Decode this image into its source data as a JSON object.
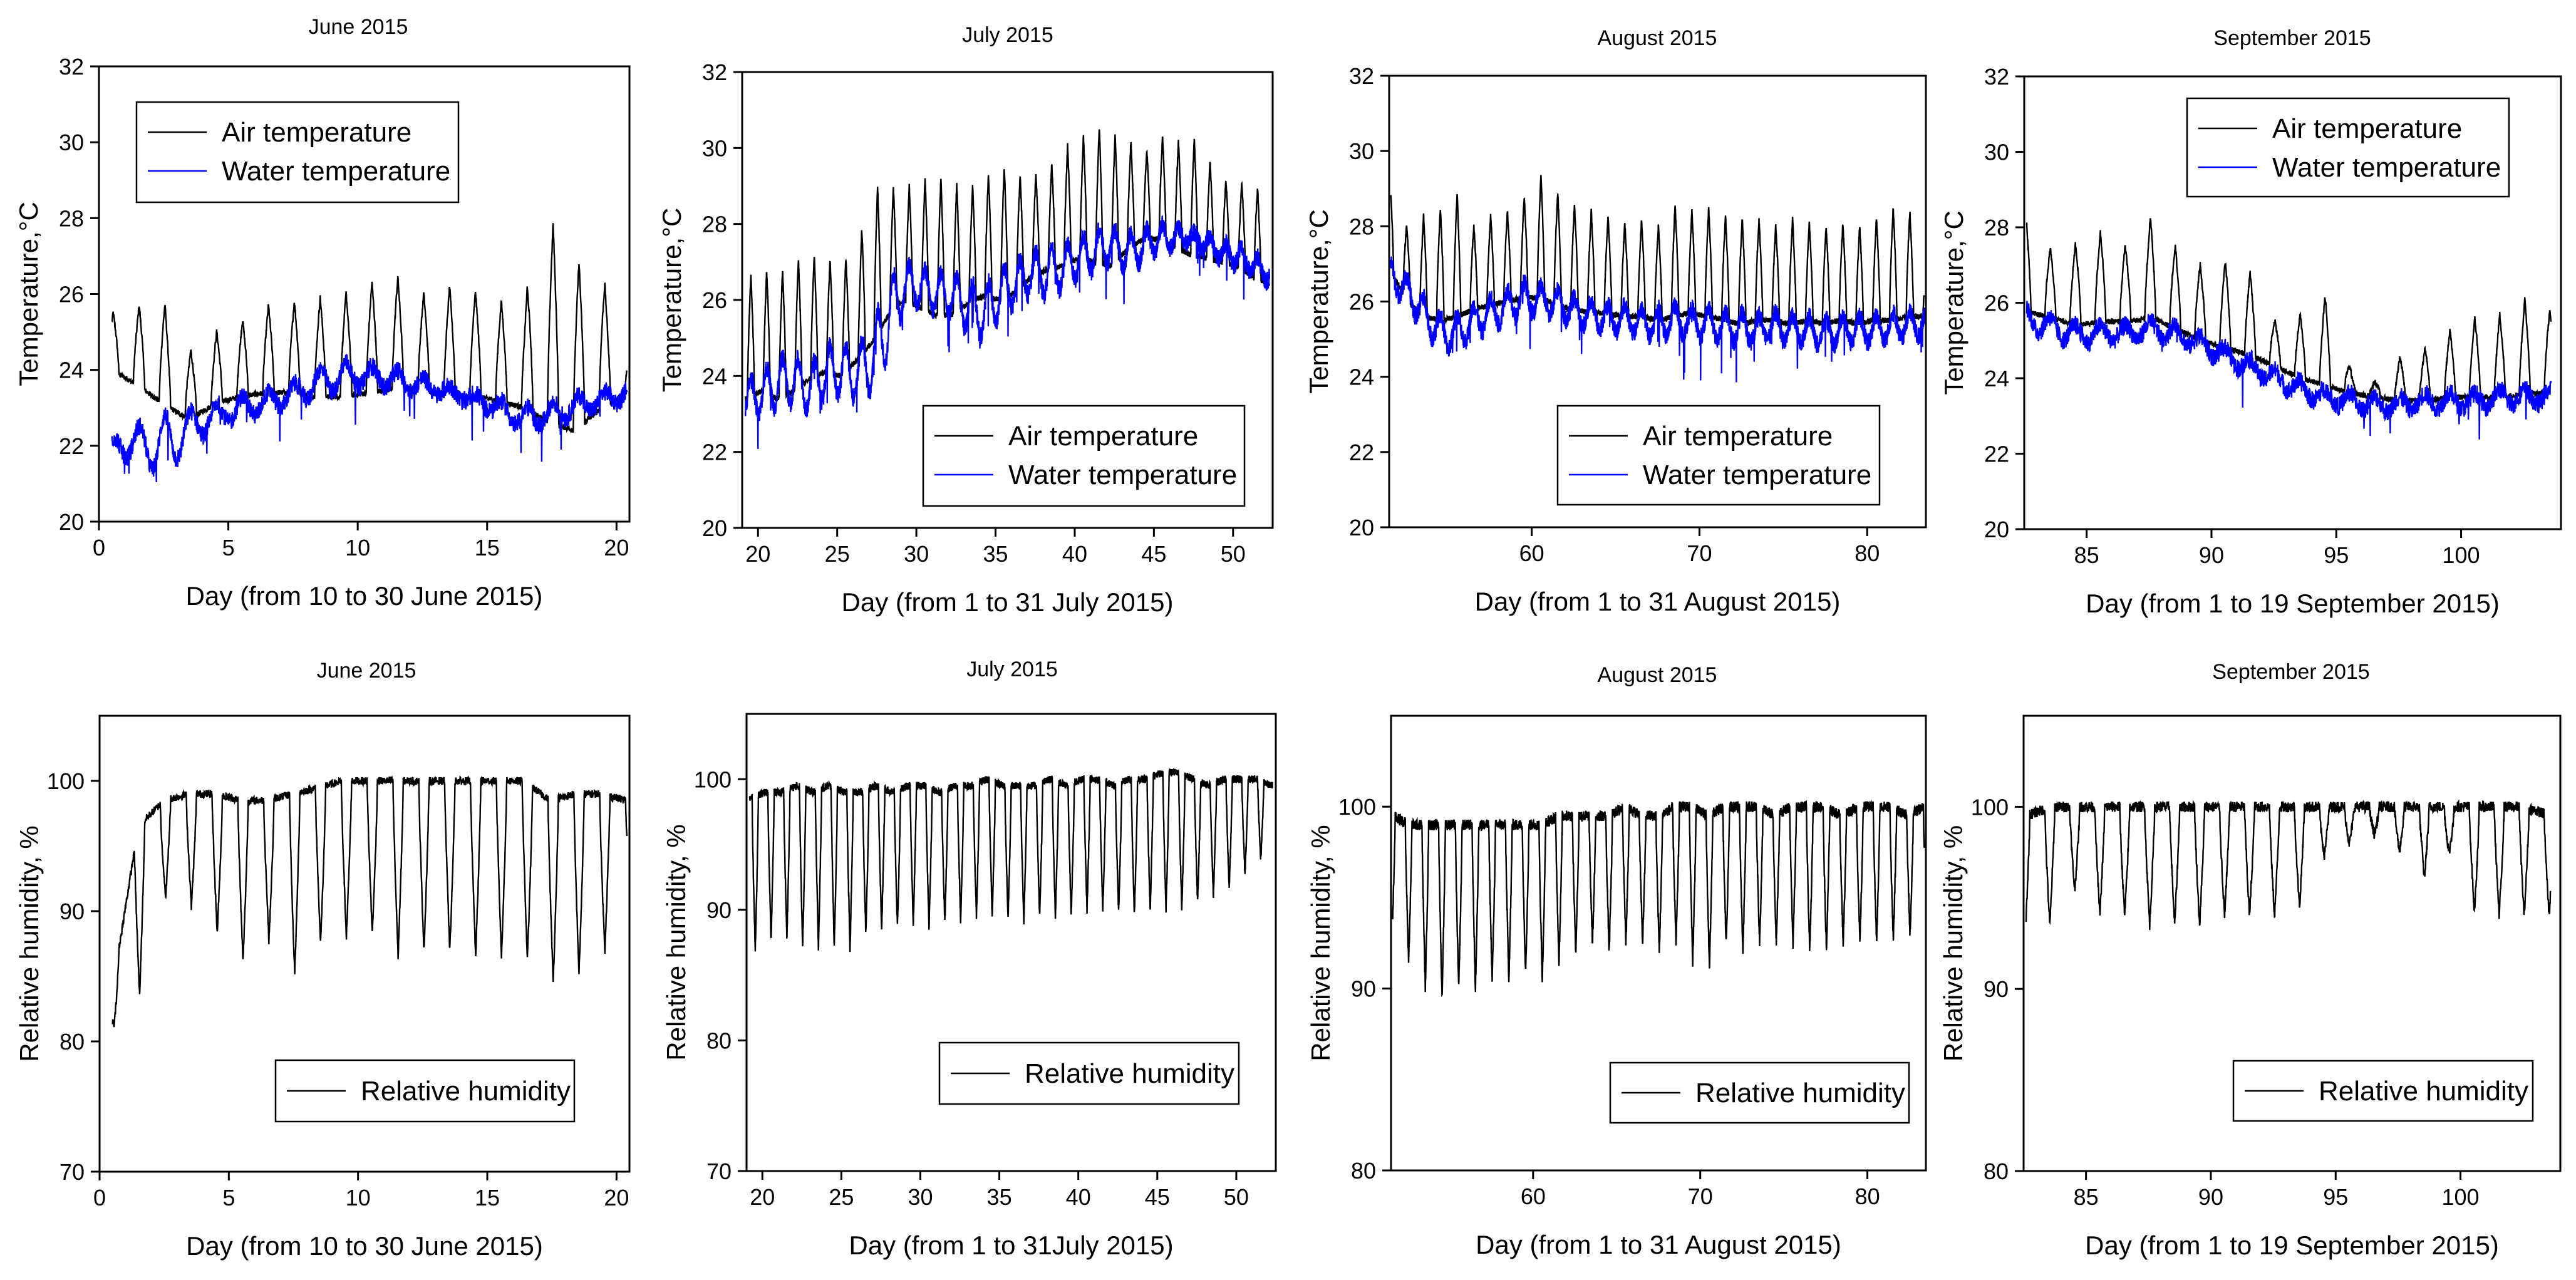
{
  "chart_data": [
    {
      "type": "line",
      "title": "June 2015",
      "xlabel": "Day (from 10 to 30 June 2015)",
      "ylabel": "Temperature,°C",
      "xlim": [
        0,
        20.5
      ],
      "ylim": [
        20,
        32
      ],
      "xticks": [
        0,
        5,
        10,
        15,
        20
      ],
      "yticks": [
        20,
        22,
        24,
        26,
        28,
        30,
        32
      ],
      "legend_position": "top-left",
      "series": [
        {
          "name": "Air temperature",
          "color": "#000000",
          "x_start": 0.5,
          "x_end": 20.4,
          "base": [
            24.0,
            23.6,
            23.1,
            22.7,
            23.1,
            23.3,
            23.4,
            23.4,
            23.3,
            23.3,
            23.4,
            23.5,
            23.5,
            23.3,
            23.3,
            23.2,
            23.0,
            22.6,
            22.4,
            23.0,
            23.4
          ],
          "peak": [
            25.5,
            25.7,
            25.8,
            24.5,
            25.0,
            25.3,
            25.7,
            25.8,
            25.9,
            26.0,
            26.3,
            26.5,
            26.0,
            26.2,
            26.1,
            25.8,
            25.9,
            28.0,
            26.9,
            26.5,
            24.8
          ],
          "amp_note": "daily cycle"
        },
        {
          "name": "Water temperature",
          "color": "#0000ff",
          "x_start": 0.5,
          "x_end": 20.4,
          "base": [
            21.8,
            21.6,
            21.2,
            22.0,
            22.5,
            22.7,
            22.9,
            23.1,
            23.3,
            23.5,
            23.6,
            23.5,
            23.4,
            23.3,
            23.1,
            22.8,
            22.4,
            22.6,
            22.8,
            23.0,
            23.2
          ],
          "peak": [
            22.2,
            22.5,
            22.8,
            22.9,
            23.1,
            23.3,
            23.4,
            23.6,
            24.0,
            24.2,
            24.1,
            24.0,
            23.8,
            23.6,
            23.4,
            23.2,
            23.0,
            23.1,
            23.3,
            23.4,
            23.6
          ],
          "amp_note": "noisy"
        }
      ]
    },
    {
      "type": "line",
      "title": "July 2015",
      "xlabel": "Day (from 1 to 31 July 2015)",
      "ylabel": "Temperature,°C",
      "xlim": [
        19,
        52.5
      ],
      "ylim": [
        20,
        32
      ],
      "xticks": [
        20,
        25,
        30,
        35,
        40,
        45,
        50
      ],
      "yticks": [
        20,
        22,
        24,
        26,
        28,
        30,
        32
      ],
      "legend_position": "bottom-right",
      "series": [
        {
          "name": "Air temperature",
          "color": "#000000",
          "x_start": 19.2,
          "x_end": 52.3,
          "base": [
            23.4,
            23.6,
            23.4,
            23.6,
            23.9,
            24.1,
            24.0,
            24.4,
            24.9,
            25.6,
            26.0,
            25.8,
            25.6,
            25.6,
            25.9,
            26.1,
            26.0,
            26.2,
            26.6,
            26.8,
            26.9,
            27.1,
            27.0,
            26.9,
            27.3,
            27.6,
            27.6,
            27.4,
            27.2,
            27.1,
            27.0,
            26.9,
            26.6,
            26.4
          ],
          "peak": [
            26.6,
            26.8,
            26.7,
            27.0,
            27.2,
            27.1,
            27.0,
            27.3,
            29.0,
            29.0,
            28.9,
            29.2,
            29.3,
            29.1,
            28.9,
            29.2,
            29.6,
            29.3,
            29.3,
            29.4,
            30.0,
            30.2,
            30.6,
            30.4,
            30.3,
            29.8,
            30.4,
            30.1,
            30.4,
            29.8,
            29.2,
            29.0,
            29.3,
            27.8
          ],
          "amp_note": "daily cycle"
        },
        {
          "name": "Water temperature",
          "color": "#0000ff",
          "x_start": 19.2,
          "x_end": 52.3,
          "base": [
            22.9,
            23.0,
            23.2,
            23.3,
            23.1,
            23.4,
            23.5,
            23.4,
            23.6,
            24.5,
            25.8,
            25.9,
            25.7,
            25.6,
            25.2,
            25.0,
            25.5,
            25.9,
            26.2,
            26.1,
            26.3,
            26.6,
            26.8,
            27.0,
            26.8,
            27.0,
            27.3,
            27.4,
            27.5,
            27.3,
            27.0,
            26.9,
            26.7,
            26.4
          ],
          "peak": [
            23.8,
            24.1,
            24.4,
            24.6,
            24.2,
            24.8,
            24.8,
            24.7,
            25.3,
            26.5,
            27.0,
            26.8,
            26.7,
            26.6,
            26.5,
            26.3,
            26.8,
            27.0,
            27.2,
            27.3,
            27.4,
            27.6,
            27.8,
            27.9,
            27.7,
            27.8,
            28.0,
            27.9,
            27.8,
            27.7,
            27.5,
            27.4,
            27.2,
            26.9
          ],
          "amp_note": "noisy"
        }
      ]
    },
    {
      "type": "line",
      "title": "August 2015",
      "xlabel": "Day (from 1 to 31 August 2015)",
      "ylabel": "Temperature,°C",
      "xlim": [
        51.5,
        83.5
      ],
      "ylim": [
        20,
        32
      ],
      "xticks": [
        60,
        70,
        80
      ],
      "yticks": [
        20,
        22,
        24,
        26,
        28,
        30,
        32
      ],
      "legend_position": "bottom-right",
      "series": [
        {
          "name": "Air temperature",
          "color": "#000000",
          "x_start": 51.6,
          "x_end": 83.4,
          "base": [
            26.8,
            26.0,
            25.6,
            25.5,
            25.6,
            25.8,
            25.9,
            26.0,
            26.1,
            26.1,
            25.9,
            25.8,
            25.7,
            25.7,
            25.6,
            25.6,
            25.5,
            25.6,
            25.7,
            25.6,
            25.5,
            25.4,
            25.5,
            25.5,
            25.4,
            25.5,
            25.4,
            25.5,
            25.4,
            25.5,
            25.5,
            25.6,
            25.6
          ],
          "peak": [
            29.3,
            28.0,
            28.3,
            28.5,
            28.9,
            28.0,
            28.3,
            28.4,
            28.8,
            29.4,
            28.9,
            28.6,
            28.4,
            28.3,
            28.1,
            28.2,
            28.0,
            28.6,
            28.4,
            28.5,
            28.3,
            28.2,
            28.2,
            28.0,
            28.2,
            28.1,
            28.0,
            28.1,
            28.0,
            28.2,
            28.5,
            28.6,
            27.0
          ],
          "amp_note": "daily cycle"
        },
        {
          "name": "Water temperature",
          "color": "#0000ff",
          "x_start": 51.6,
          "x_end": 83.4,
          "base": [
            26.4,
            25.9,
            25.3,
            24.7,
            24.8,
            25.1,
            25.3,
            25.5,
            25.7,
            25.7,
            25.6,
            25.4,
            25.3,
            25.2,
            25.2,
            25.1,
            25.0,
            25.1,
            25.1,
            25.0,
            25.0,
            24.9,
            24.9,
            25.0,
            24.9,
            24.9,
            24.8,
            24.9,
            24.9,
            24.9,
            25.0,
            25.0,
            25.1
          ],
          "peak": [
            27.1,
            26.6,
            26.1,
            25.6,
            25.6,
            25.9,
            26.1,
            26.3,
            26.5,
            26.4,
            26.3,
            26.1,
            26.0,
            25.9,
            25.9,
            25.8,
            25.8,
            25.9,
            25.8,
            25.8,
            25.7,
            25.7,
            25.6,
            25.7,
            25.6,
            25.6,
            25.5,
            25.6,
            25.6,
            25.6,
            25.7,
            25.7,
            25.8
          ],
          "amp_note": "noisy"
        }
      ]
    },
    {
      "type": "line",
      "title": "September 2015",
      "xlabel": "Day (from 1 to 19 September 2015)",
      "ylabel": "Temperature,°C",
      "xlim": [
        82.5,
        104
      ],
      "ylim": [
        20,
        32
      ],
      "xticks": [
        85,
        90,
        95,
        100
      ],
      "yticks": [
        20,
        22,
        24,
        26,
        28,
        30,
        32
      ],
      "legend_position": "top-right",
      "series": [
        {
          "name": "Air temperature",
          "color": "#000000",
          "x_start": 82.6,
          "x_end": 103.6,
          "base": [
            25.8,
            25.6,
            25.4,
            25.5,
            25.5,
            25.6,
            25.3,
            25.0,
            24.8,
            24.6,
            24.3,
            24.0,
            23.8,
            23.6,
            23.5,
            23.4,
            23.4,
            23.5,
            23.5,
            23.5,
            23.6,
            23.6
          ],
          "peak": [
            28.5,
            27.4,
            27.6,
            27.9,
            27.5,
            28.3,
            27.5,
            27.0,
            27.1,
            26.8,
            25.5,
            25.7,
            26.2,
            24.2,
            23.9,
            24.6,
            24.8,
            25.3,
            25.6,
            25.7,
            26.1,
            25.8
          ],
          "amp_note": "daily cycle"
        },
        {
          "name": "Water temperature",
          "color": "#0000ff",
          "x_start": 82.6,
          "x_end": 103.6,
          "base": [
            25.3,
            25.1,
            24.9,
            25.0,
            25.0,
            25.1,
            25.0,
            24.7,
            24.4,
            24.1,
            23.8,
            23.5,
            23.3,
            23.2,
            23.1,
            23.1,
            23.2,
            23.2,
            23.2,
            23.3,
            23.3,
            23.3
          ],
          "peak": [
            25.9,
            25.6,
            25.4,
            25.4,
            25.4,
            25.5,
            25.4,
            25.1,
            24.8,
            24.5,
            24.2,
            23.9,
            23.7,
            23.6,
            23.5,
            23.5,
            23.6,
            23.6,
            23.6,
            23.7,
            23.7,
            23.7
          ],
          "amp_note": "noisy"
        }
      ]
    },
    {
      "type": "line",
      "title": "June 2015",
      "xlabel": "Day (from 10 to 30 June 2015)",
      "ylabel": "Relative humidity, %",
      "xlim": [
        0,
        20.5
      ],
      "ylim": [
        70,
        105
      ],
      "xticks": [
        0,
        5,
        10,
        15,
        20
      ],
      "yticks": [
        70,
        80,
        90,
        100
      ],
      "legend_position": "bottom-right",
      "series": [
        {
          "name": "Relative humidity",
          "color": "#000000",
          "x_start": 0.5,
          "x_end": 20.4,
          "base": [
            81.0,
            83.0,
            91.0,
            90.5,
            88.5,
            86.0,
            88.0,
            85.0,
            87.5,
            88.0,
            88.5,
            86.5,
            87.0,
            87.0,
            86.5,
            86.5,
            86.5,
            84.5,
            85.0,
            86.5,
            90.0
          ],
          "peak": [
            84.0,
            96.5,
            98.5,
            99.0,
            99.0,
            98.5,
            98.5,
            99.0,
            99.5,
            100.0,
            100.0,
            100.0,
            100.0,
            100.0,
            100.0,
            100.0,
            100.0,
            98.5,
            99.0,
            99.0,
            98.5
          ],
          "amp_note": "daily cycle"
        }
      ]
    },
    {
      "type": "line",
      "title": "July 2015",
      "xlabel": "Day (from 1 to 31July 2015)",
      "ylabel": "Relative humidity, %",
      "xlim": [
        19,
        52.5
      ],
      "ylim": [
        70,
        105
      ],
      "xticks": [
        20,
        25,
        30,
        35,
        40,
        45,
        50
      ],
      "yticks": [
        70,
        80,
        90,
        100
      ],
      "legend_position": "bottom-right",
      "series": [
        {
          "name": "Relative humidity",
          "color": "#000000",
          "x_start": 19.2,
          "x_end": 52.3,
          "base": [
            86.5,
            87.5,
            88.0,
            87.5,
            87.0,
            87.5,
            86.5,
            88.0,
            88.5,
            88.5,
            89.0,
            88.5,
            89.0,
            89.0,
            89.5,
            89.5,
            89.5,
            89.0,
            89.5,
            89.5,
            89.5,
            90.0,
            90.0,
            90.0,
            89.5,
            90.0,
            90.0,
            90.0,
            90.5,
            91.0,
            91.5,
            92.5,
            93.5,
            95.0
          ],
          "peak": [
            98.5,
            99.0,
            99.0,
            99.5,
            99.0,
            99.5,
            99.0,
            99.0,
            99.5,
            99.0,
            99.5,
            99.5,
            99.0,
            99.5,
            99.5,
            100.0,
            99.5,
            99.5,
            99.5,
            100.0,
            99.5,
            100.0,
            100.0,
            99.5,
            100.0,
            100.0,
            100.5,
            100.5,
            100.0,
            99.5,
            100.0,
            100.0,
            100.0,
            99.5
          ],
          "amp_note": "daily cycle"
        }
      ]
    },
    {
      "type": "line",
      "title": "August 2015",
      "xlabel": "Day (from 1 to 31 August 2015)",
      "ylabel": "Relative humidity, %",
      "xlim": [
        51.5,
        83.5
      ],
      "ylim": [
        80,
        105
      ],
      "xticks": [
        60,
        70,
        80
      ],
      "yticks": [
        80,
        90,
        100
      ],
      "legend_position": "bottom-right",
      "series": [
        {
          "name": "Relative humidity",
          "color": "#000000",
          "x_start": 51.6,
          "x_end": 83.4,
          "base": [
            92.5,
            91.5,
            90.0,
            89.5,
            90.0,
            90.0,
            90.5,
            90.5,
            91.0,
            90.5,
            91.5,
            92.0,
            92.5,
            92.0,
            92.5,
            92.5,
            92.0,
            92.5,
            91.5,
            91.0,
            92.5,
            92.0,
            92.5,
            92.5,
            92.5,
            92.0,
            92.0,
            92.5,
            92.5,
            92.5,
            92.5,
            93.0,
            92.5
          ],
          "peak": [
            99.5,
            99.0,
            99.0,
            99.0,
            99.0,
            99.0,
            99.0,
            99.0,
            99.0,
            99.0,
            99.5,
            99.5,
            99.5,
            99.5,
            100.0,
            99.5,
            99.5,
            100.0,
            100.0,
            99.5,
            100.0,
            100.0,
            100.0,
            99.5,
            100.0,
            100.0,
            100.0,
            99.5,
            100.0,
            100.0,
            100.0,
            99.5,
            100.0
          ],
          "amp_note": "daily cycle"
        }
      ]
    },
    {
      "type": "line",
      "title": "September 2015",
      "xlabel": "Day (from 1 to 19 September 2015)",
      "ylabel": "Relative humidity, %",
      "xlim": [
        82.5,
        104
      ],
      "ylim": [
        80,
        105
      ],
      "xticks": [
        85,
        90,
        95,
        100
      ],
      "yticks": [
        80,
        90,
        100
      ],
      "legend_position": "bottom-right",
      "series": [
        {
          "name": "Relative humidity",
          "color": "#000000",
          "x_start": 82.6,
          "x_end": 103.6,
          "base": [
            92.5,
            93.5,
            95.5,
            94.0,
            94.0,
            93.5,
            93.5,
            93.5,
            94.0,
            94.0,
            94.0,
            94.5,
            97.5,
            98.0,
            98.5,
            97.5,
            96.0,
            97.5,
            94.0,
            94.0,
            94.0,
            94.0
          ],
          "peak": [
            99.5,
            100.0,
            100.0,
            100.0,
            100.0,
            100.0,
            100.0,
            100.0,
            100.0,
            100.0,
            100.0,
            100.0,
            100.0,
            100.0,
            100.0,
            100.0,
            100.0,
            100.0,
            100.0,
            100.0,
            100.0,
            99.5
          ],
          "amp_note": "daily cycle"
        }
      ]
    }
  ]
}
